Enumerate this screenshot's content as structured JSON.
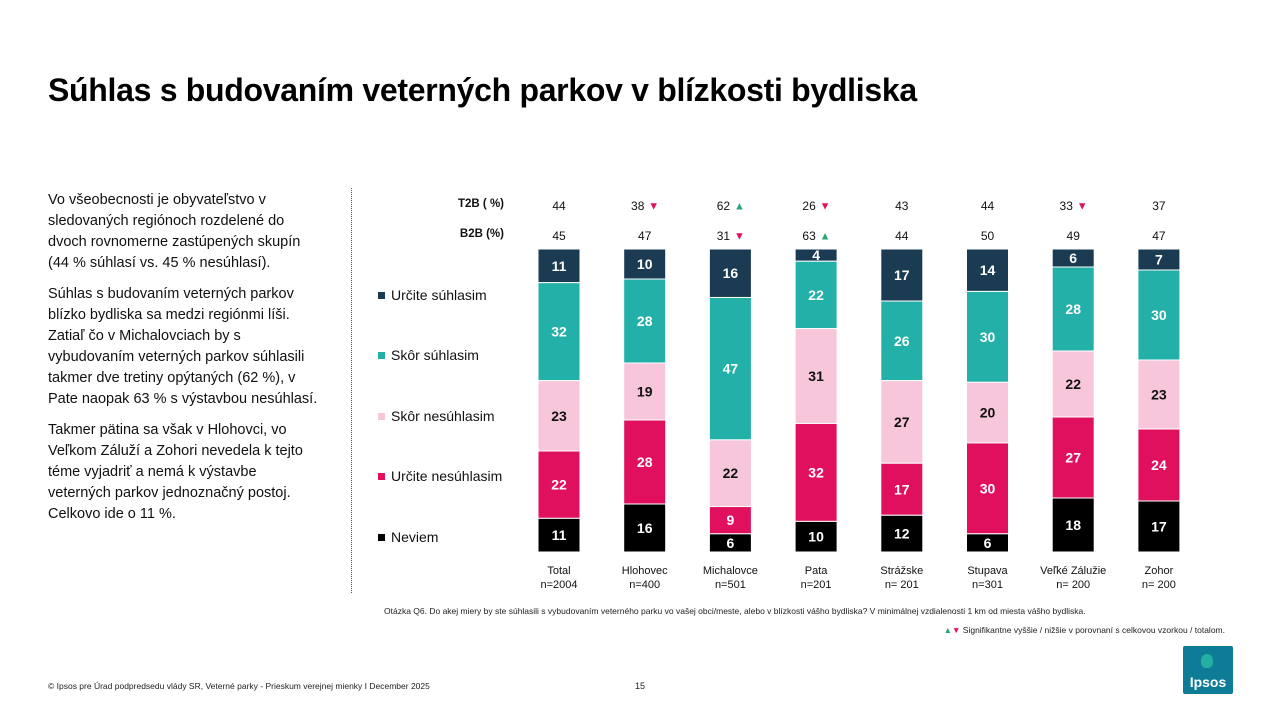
{
  "title": "Súhlas s budovaním veterných parkov v blízkosti bydliska",
  "paragraphs": [
    "Vo všeobecnosti je obyvateľstvo v sledovaných regiónoch rozdelené do dvoch rovnomerne zastúpených skupín (44 % súhlasí vs. 45 % nesúhlasí).",
    "Súhlas s budovaním veterných parkov blízko bydliska sa medzi regiónmi líši. Zatiaľ čo v Michalovciach by s vybudovaním veterných parkov súhlasili takmer dve tretiny opýtaných (62 %), v Pate naopak 63 % s výstavbou nesúhlasí.",
    "Takmer pätina sa však v Hlohovci, vo Veľkom Záluží a Zohori nevedela k tejto téme vyjadriť a nemá k výstavbe veterných parkov jednoznačný postoj. Celkovo ide o 11 %."
  ],
  "legend_labels": [
    "Určite súhlasim",
    "Skôr súhlasim",
    "Skôr nesúhlasim",
    "Určite nesúhlasim",
    "Neviem"
  ],
  "colors": {
    "urcite_suhlasim": "#1a3b52",
    "skor_suhlasim": "#23b0a8",
    "skor_nesuhlasim": "#f7c6da",
    "urcite_nesuhlasim": "#e0105f",
    "neviem": "#000000",
    "sig_up": "#23a870",
    "sig_down": "#e0105f"
  },
  "row_labels": {
    "t2b": "T2B ( %)",
    "b2b": "B2B (%)"
  },
  "chart_data": {
    "type": "bar",
    "stacked": true,
    "categories": [
      "Total",
      "Hlohovec",
      "Michalovce",
      "Pata",
      "Strážske",
      "Stupava",
      "Veľké Zálužie",
      "Zohor"
    ],
    "sample_sizes": [
      "n=2004",
      "n=400",
      "n=501",
      "n=201",
      "n= 201",
      "n=301",
      "n= 200",
      "n= 200"
    ],
    "series": [
      {
        "name": "Určite súhlasim",
        "values": [
          11,
          10,
          16,
          4,
          17,
          14,
          6,
          7
        ]
      },
      {
        "name": "Skôr súhlasim",
        "values": [
          32,
          28,
          47,
          22,
          26,
          30,
          28,
          30
        ]
      },
      {
        "name": "Skôr nesúhlasim",
        "values": [
          23,
          19,
          22,
          31,
          27,
          20,
          22,
          23
        ]
      },
      {
        "name": "Určite nesúhlasim",
        "values": [
          22,
          28,
          9,
          32,
          17,
          30,
          27,
          24
        ]
      },
      {
        "name": "Neviem",
        "values": [
          11,
          16,
          6,
          10,
          12,
          6,
          18,
          17
        ]
      }
    ],
    "t2b": {
      "values": [
        44,
        38,
        62,
        26,
        43,
        44,
        33,
        37
      ],
      "sig": [
        "",
        "down",
        "up",
        "down",
        "",
        "",
        "down",
        ""
      ]
    },
    "b2b": {
      "values": [
        45,
        47,
        31,
        63,
        44,
        50,
        49,
        47
      ],
      "sig": [
        "",
        "",
        "down",
        "up",
        "",
        "",
        "",
        ""
      ]
    },
    "legend_placement": "left"
  },
  "footnote": "Otázka Q6. Do akej miery by ste súhlasili s vybudovaním veterného parku vo vašej obci/meste, alebo v blízkosti vášho bydliska? V minimálnej vzdialenosti 1 km od miesta vášho bydliska.",
  "significance_note": "Signifikantne vyššie / nižšie v porovnaní s celkovou vzorkou / totalom.",
  "source": "© Ipsos pre Úrad podpredsedu vlády SR, Veterné parky - Prieskum verejnej mienky I December 2025",
  "page_number": "15",
  "logo_text": "Ipsos"
}
